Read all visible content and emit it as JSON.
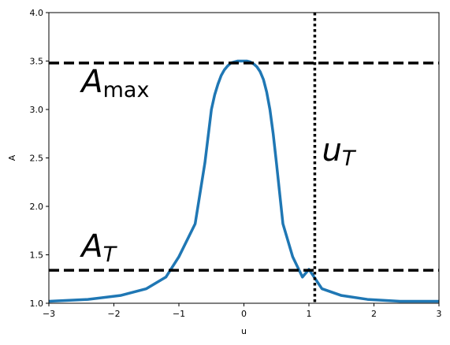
{
  "chart_data": {
    "type": "line",
    "xlabel": "u",
    "ylabel": "A",
    "xlim": [
      -3,
      3
    ],
    "ylim": [
      1.0,
      4.0
    ],
    "x_ticks": [
      -3,
      -2,
      -1,
      0,
      1,
      2,
      3
    ],
    "y_ticks": [
      1.0,
      1.5,
      2.0,
      2.5,
      3.0,
      3.5,
      4.0
    ],
    "x_tick_labels": [
      "−3",
      "−2",
      "−1",
      "0",
      "1",
      "2",
      "3"
    ],
    "y_tick_labels": [
      "1.0",
      "1.5",
      "2.0",
      "2.5",
      "3.0",
      "3.5",
      "4.0"
    ],
    "grid": false,
    "series": [
      {
        "color": "#1f77b4",
        "x": [
          -3.0,
          -2.4,
          -1.9,
          -1.5,
          -1.2,
          -1.0,
          -0.75,
          -0.6,
          -0.5,
          -0.45,
          -0.4,
          -0.35,
          -0.3,
          -0.25,
          -0.2,
          -0.15,
          -0.1,
          -0.05,
          0.0,
          0.05,
          0.1,
          0.15,
          0.2,
          0.25,
          0.3,
          0.35,
          0.4,
          0.45,
          0.5,
          0.6,
          0.75,
          0.9,
          1.0,
          1.2,
          1.5,
          1.9,
          2.4,
          3.0
        ],
        "y": [
          1.02,
          1.04,
          1.08,
          1.15,
          1.27,
          1.48,
          1.82,
          2.45,
          3.0,
          3.15,
          3.26,
          3.35,
          3.41,
          3.45,
          3.48,
          3.49,
          3.5,
          3.5,
          3.5,
          3.5,
          3.49,
          3.47,
          3.44,
          3.39,
          3.31,
          3.18,
          3.0,
          2.75,
          2.45,
          1.82,
          1.48,
          1.27,
          1.35,
          1.15,
          1.08,
          1.04,
          1.02,
          1.02
        ]
      }
    ],
    "hlines": [
      {
        "y": 3.48,
        "style": "dashed",
        "color": "#000000"
      },
      {
        "y": 1.34,
        "style": "dashed",
        "color": "#000000"
      }
    ],
    "vlines": [
      {
        "x": 1.09,
        "style": "dotted",
        "color": "#000000"
      }
    ],
    "annotations": {
      "amax": {
        "main": "A",
        "sub": "max",
        "x": -2.5,
        "y": 3.18
      },
      "at": {
        "main": "A",
        "sub": "T",
        "x": -2.5,
        "y": 1.48
      },
      "ut": {
        "main": "u",
        "sub": "T",
        "x": 1.2,
        "y": 2.47
      }
    }
  }
}
